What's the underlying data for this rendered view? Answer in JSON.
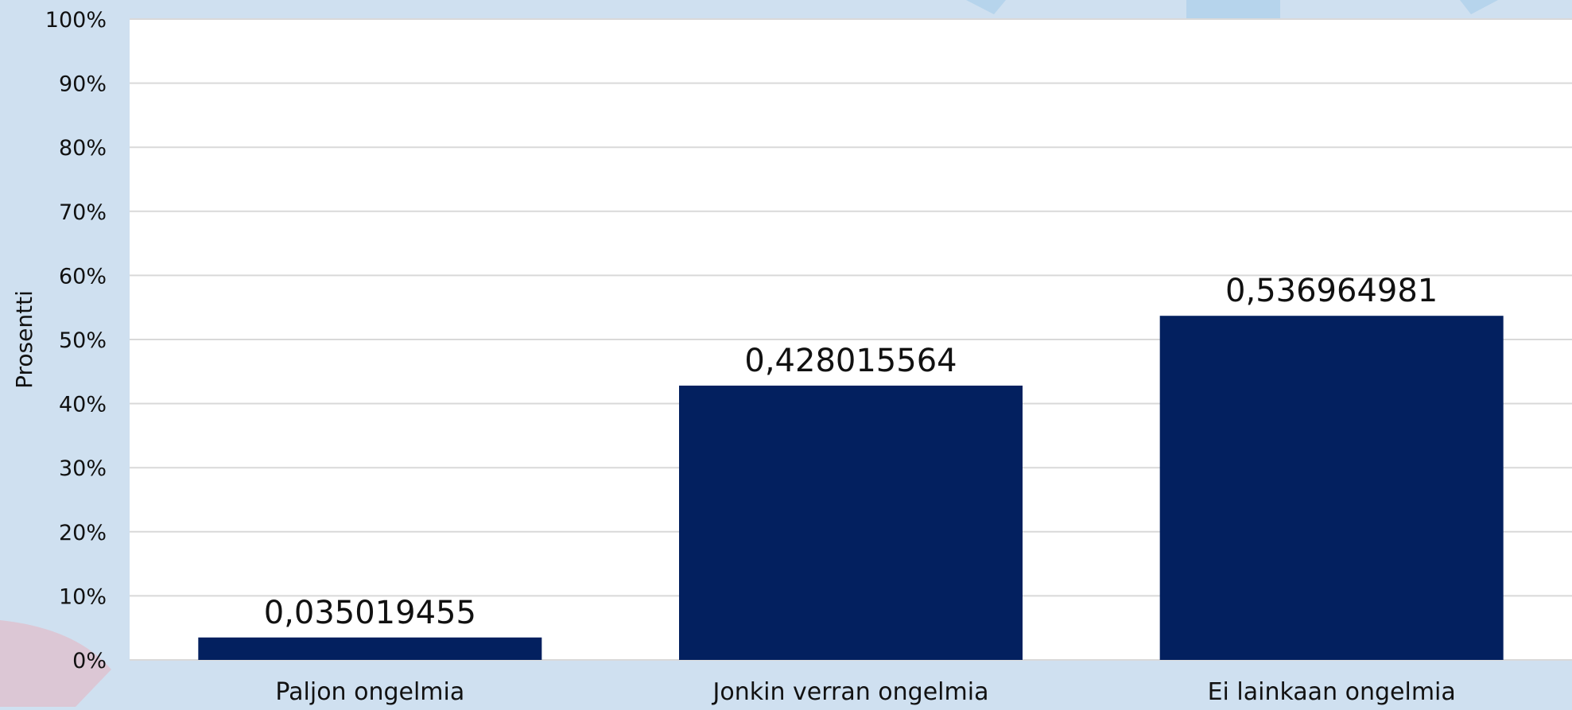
{
  "chart_data": {
    "type": "bar",
    "title": "",
    "xlabel": "",
    "ylabel": "Prosentti",
    "categories": [
      "Paljon ongelmia",
      "Jonkin verran ongelmia",
      "Ei lainkaan ongelmia"
    ],
    "values": [
      0.035019455,
      0.428015564,
      0.536964981
    ],
    "data_labels": [
      "0,035019455",
      "0,428015564",
      "0,536964981"
    ],
    "y_ticks": [
      "0%",
      "10%",
      "20%",
      "30%",
      "40%",
      "50%",
      "60%",
      "70%",
      "80%",
      "90%",
      "100%"
    ],
    "ylim": [
      0,
      1
    ],
    "grid": true,
    "legend": "none"
  },
  "colors": {
    "background": "#cfe0f0",
    "plot_area": "#ffffff",
    "bar": "#03205f",
    "grid": "#d9d9d9",
    "text": "#111111",
    "decor_pink": "#dcc7d5",
    "decor_blue": "#b6d4ec"
  }
}
